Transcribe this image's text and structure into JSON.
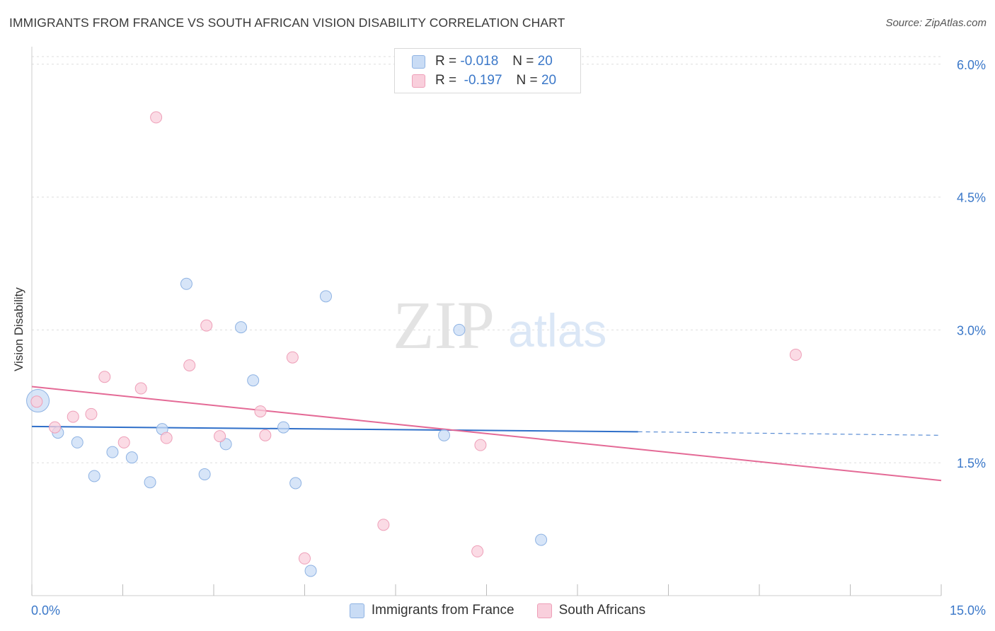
{
  "title": "IMMIGRANTS FROM FRANCE VS SOUTH AFRICAN VISION DISABILITY CORRELATION CHART",
  "source": "Source: ZipAtlas.com",
  "watermark": {
    "zip": "ZIP",
    "atlas": "atlas"
  },
  "legend": [
    {
      "r_label": "R =",
      "r_value": "-0.018",
      "n_label": "N =",
      "n_value": "20"
    },
    {
      "r_label": "R =",
      "r_value": "-0.197",
      "n_label": "N =",
      "n_value": "20"
    }
  ],
  "colors": {
    "blue_fill": "#c9dcf5",
    "blue_stroke": "#8fb3e3",
    "blue_line": "#2f6fc9",
    "pink_fill": "#f9cfdc",
    "pink_stroke": "#ee9fb8",
    "pink_line": "#e46a96",
    "tick_label": "#3b78c9",
    "grid": "#dddddd"
  },
  "chart_data": {
    "type": "scatter",
    "xlabel": "",
    "ylabel": "Vision Disability",
    "xlim": [
      0,
      15
    ],
    "ylim": [
      0,
      6.15
    ],
    "x_tick_labels": [
      {
        "value": 0,
        "label": "0.0%"
      },
      {
        "value": 15,
        "label": "15.0%"
      }
    ],
    "y_tick_labels": [
      {
        "value": 1.5,
        "label": "1.5%"
      },
      {
        "value": 3.0,
        "label": "3.0%"
      },
      {
        "value": 4.5,
        "label": "4.5%"
      },
      {
        "value": 6.0,
        "label": "6.0%"
      }
    ],
    "grid": "horizontal dashed",
    "legend_position": "top-center and bottom",
    "series": [
      {
        "name": "Immigrants from France",
        "color": "blue",
        "points": [
          {
            "x": 0.1,
            "y": 2.2,
            "large": true
          },
          {
            "x": 0.43,
            "y": 1.84
          },
          {
            "x": 0.75,
            "y": 1.73
          },
          {
            "x": 1.03,
            "y": 1.35
          },
          {
            "x": 1.33,
            "y": 1.62
          },
          {
            "x": 1.65,
            "y": 1.56
          },
          {
            "x": 1.95,
            "y": 1.28
          },
          {
            "x": 2.15,
            "y": 1.88
          },
          {
            "x": 2.55,
            "y": 3.52
          },
          {
            "x": 2.85,
            "y": 1.37
          },
          {
            "x": 3.2,
            "y": 1.71
          },
          {
            "x": 3.45,
            "y": 3.03
          },
          {
            "x": 3.65,
            "y": 2.43
          },
          {
            "x": 4.15,
            "y": 1.9
          },
          {
            "x": 4.35,
            "y": 1.27
          },
          {
            "x": 4.6,
            "y": 0.28
          },
          {
            "x": 4.85,
            "y": 3.38
          },
          {
            "x": 6.8,
            "y": 1.81
          },
          {
            "x": 7.05,
            "y": 3.0
          },
          {
            "x": 8.4,
            "y": 0.63
          }
        ],
        "trend": {
          "x0": 0,
          "y0": 1.91,
          "x1": 10.0,
          "y1": 1.85,
          "dashed_to_x": 15,
          "dashed_to_y": 1.81
        }
      },
      {
        "name": "South Africans",
        "color": "pink",
        "points": [
          {
            "x": 0.08,
            "y": 2.19
          },
          {
            "x": 0.38,
            "y": 1.9
          },
          {
            "x": 0.68,
            "y": 2.02
          },
          {
            "x": 0.98,
            "y": 2.05
          },
          {
            "x": 1.2,
            "y": 2.47
          },
          {
            "x": 1.52,
            "y": 1.73
          },
          {
            "x": 1.8,
            "y": 2.34
          },
          {
            "x": 2.05,
            "y": 5.4
          },
          {
            "x": 2.22,
            "y": 1.78
          },
          {
            "x": 2.6,
            "y": 2.6
          },
          {
            "x": 2.88,
            "y": 3.05
          },
          {
            "x": 3.1,
            "y": 1.8
          },
          {
            "x": 3.77,
            "y": 2.08
          },
          {
            "x": 3.85,
            "y": 1.81
          },
          {
            "x": 4.3,
            "y": 2.69
          },
          {
            "x": 4.5,
            "y": 0.42
          },
          {
            "x": 5.8,
            "y": 0.8
          },
          {
            "x": 7.35,
            "y": 0.5
          },
          {
            "x": 7.4,
            "y": 1.7
          },
          {
            "x": 12.6,
            "y": 2.72
          }
        ],
        "trend": {
          "x0": 0,
          "y0": 2.36,
          "x1": 15,
          "y1": 1.3
        }
      }
    ]
  }
}
